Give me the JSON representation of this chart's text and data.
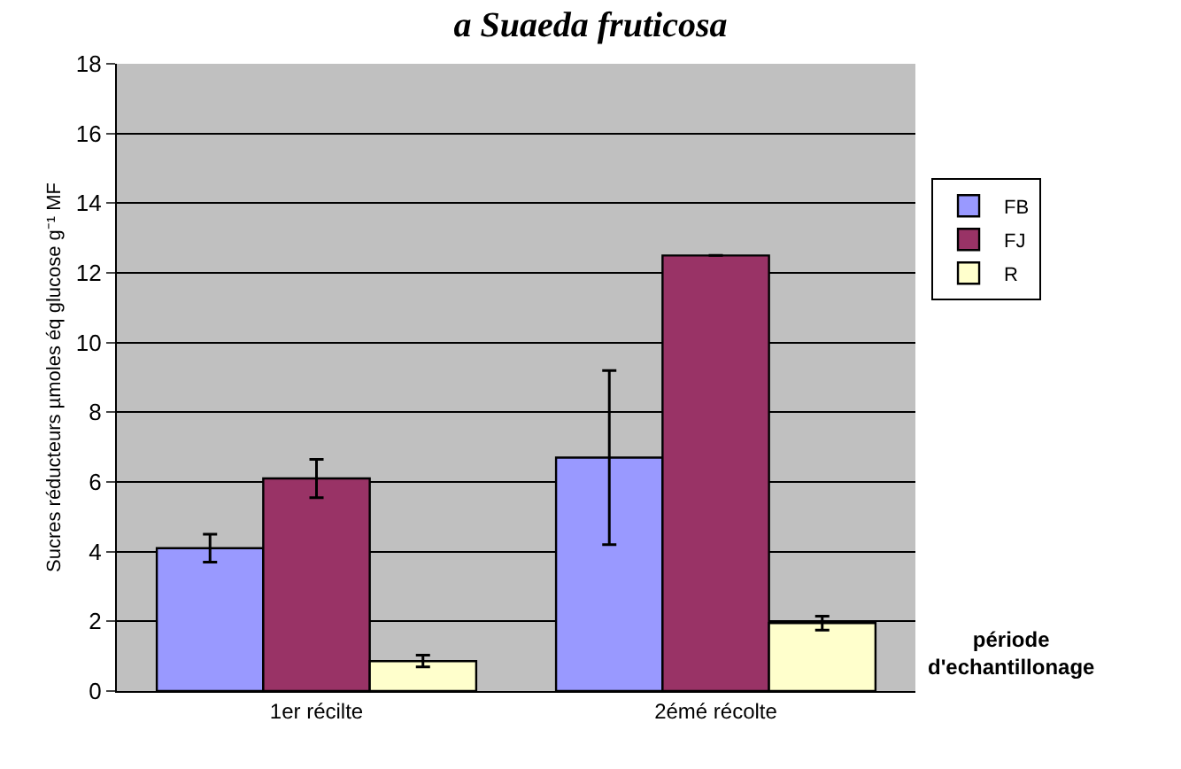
{
  "chart_data": {
    "type": "bar",
    "title": "a Suaeda fruticosa",
    "ylabel": "Sucres réducteurs µmoles éq glucose g⁻¹ MF",
    "xlabel": "période d'echantillonage",
    "categories": [
      "1er récilte",
      "2émé récolte"
    ],
    "series": [
      {
        "name": "FB",
        "color": "#9999ff",
        "values": [
          4.1,
          6.7
        ],
        "errors": [
          0.4,
          2.5
        ]
      },
      {
        "name": "FJ",
        "color": "#993366",
        "values": [
          6.1,
          12.5
        ],
        "errors": [
          0.55,
          null
        ]
      },
      {
        "name": "R",
        "color": "#ffffcc",
        "values": [
          0.86,
          1.95
        ],
        "errors": [
          0.17,
          0.2
        ]
      }
    ],
    "ylim": [
      0,
      18
    ],
    "yticks": [
      0,
      2,
      4,
      6,
      8,
      10,
      12,
      14,
      16,
      18
    ],
    "grid": "y",
    "legend": "right"
  }
}
